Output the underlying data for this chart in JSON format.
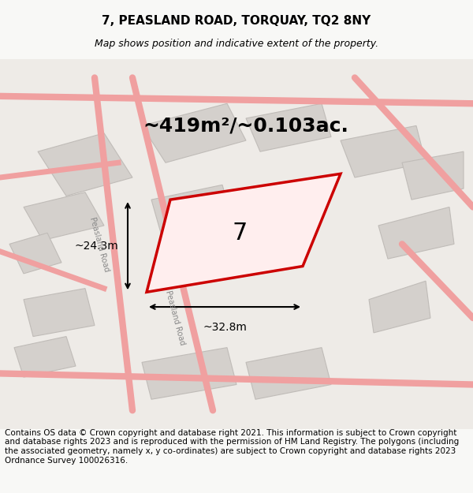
{
  "title": "7, PEASLAND ROAD, TORQUAY, TQ2 8NY",
  "subtitle": "Map shows position and indicative extent of the property.",
  "area_text": "~419m²/~0.103ac.",
  "label_7": "7",
  "dim_width": "~32.8m",
  "dim_height": "~24.3m",
  "footer": "Contains OS data © Crown copyright and database right 2021. This information is subject to Crown copyright and database rights 2023 and is reproduced with the permission of HM Land Registry. The polygons (including the associated geometry, namely x, y co-ordinates) are subject to Crown copyright and database rights 2023 Ordnance Survey 100026316.",
  "bg_color": "#f0eeec",
  "map_bg": "#e8e6e3",
  "road_color": "#f7c8c8",
  "building_color": "#d0ccc8",
  "building_fill": "#d4d0cc",
  "highlight_color": "#cc0000",
  "highlight_fill": "none",
  "title_fontsize": 11,
  "subtitle_fontsize": 9,
  "area_fontsize": 18,
  "label_fontsize": 20,
  "footer_fontsize": 7.5,
  "dim_fontsize": 10,
  "road_label": "Peasland Road",
  "road_label2": "Peasland Road"
}
